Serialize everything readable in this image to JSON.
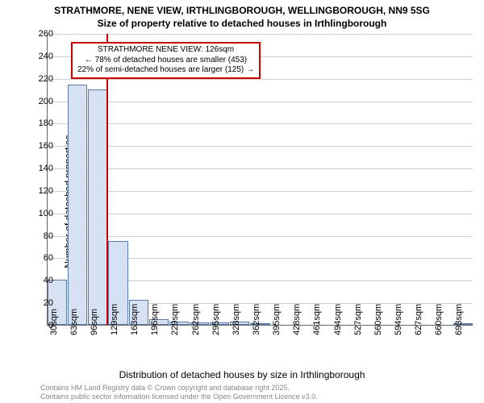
{
  "title_main": "STRATHMORE, NENE VIEW, IRTHLINGBOROUGH, WELLINGBOROUGH, NN9 5SG",
  "title_sub": "Size of property relative to detached houses in Irthlingborough",
  "y_label": "Number of detached properties",
  "x_label": "Distribution of detached houses by size in Irthlingborough",
  "footer1": "Contains HM Land Registry data © Crown copyright and database right 2025.",
  "footer2": "Contains public sector information licensed under the Open Government Licence v3.0.",
  "chart": {
    "type": "histogram",
    "ylim": [
      0,
      260
    ],
    "ytick_step": 20,
    "categories": [
      "30sqm",
      "63sqm",
      "96sqm",
      "129sqm",
      "163sqm",
      "196sqm",
      "229sqm",
      "262sqm",
      "295sqm",
      "328sqm",
      "362sqm",
      "395sqm",
      "428sqm",
      "461sqm",
      "494sqm",
      "527sqm",
      "560sqm",
      "594sqm",
      "627sqm",
      "660sqm",
      "693sqm"
    ],
    "values": [
      40,
      214,
      210,
      75,
      22,
      5,
      3,
      2,
      2,
      3,
      1,
      0,
      0,
      0,
      0,
      0,
      0,
      0,
      0,
      0,
      1
    ],
    "bar_fill": "#d6e1f3",
    "bar_stroke": "#5b7ca8",
    "grid_color": "#d0d0d0",
    "background_color": "#ffffff",
    "ref_line_value": 126,
    "ref_line_color": "#cc0000",
    "annotation": {
      "title": "STRATHMORE NENE VIEW: 126sqm",
      "line1": "← 78% of detached houses are smaller (453)",
      "line2": "22% of semi-detached houses are larger (125) →",
      "border_color": "#cc0000"
    },
    "title_fontsize": 12,
    "label_fontsize": 12,
    "tick_fontsize": 11
  }
}
